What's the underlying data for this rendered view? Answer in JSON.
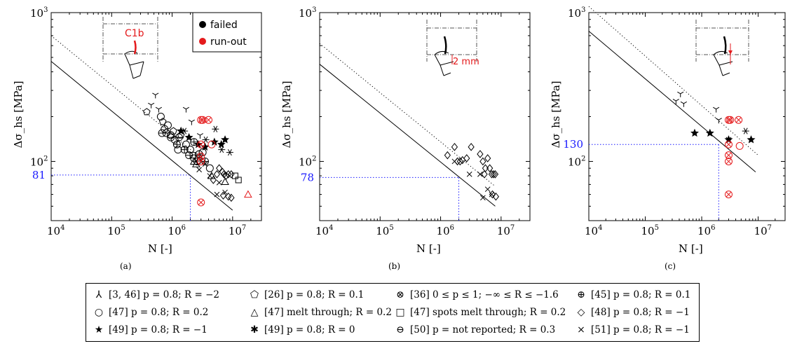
{
  "chart_data": [
    {
      "panel_label": "(a)",
      "type": "scatter",
      "scale": "log-log",
      "xlim": [
        10000,
        30000000
      ],
      "ylim": [
        40,
        1000
      ],
      "xticks": [
        "10^4",
        "10^5",
        "10^6",
        "10^7"
      ],
      "yticks": [
        "10^2",
        "10^3"
      ],
      "xlabel": "N [-]",
      "ylabel": "Δσ_hs [MPa]",
      "legend": [
        "failed",
        "run-out"
      ],
      "legend_position": "top-right",
      "inset_annotation": "C1b",
      "reference_level": {
        "label": "81",
        "value": 81,
        "N": 2000000
      },
      "lines": [
        {
          "style": "solid",
          "points": [
            [
              10000,
              470
            ],
            [
              10000000,
              47
            ]
          ]
        },
        {
          "style": "dotted",
          "points": [
            [
              10000,
              700
            ],
            [
              3500000,
              100
            ]
          ]
        }
      ],
      "points": [
        {
          "m": "Y",
          "x": 450000,
          "y": 240
        },
        {
          "m": "Y",
          "x": 530000,
          "y": 280
        },
        {
          "m": "Y",
          "x": 600000,
          "y": 225
        },
        {
          "m": "Y",
          "x": 1700000,
          "y": 225
        },
        {
          "m": "Y",
          "x": 2100000,
          "y": 185
        },
        {
          "m": "Y",
          "x": 2900000,
          "y": 150
        },
        {
          "m": "pent",
          "x": 380000,
          "y": 215
        },
        {
          "m": "pent",
          "x": 700000,
          "y": 185
        },
        {
          "m": "pent",
          "x": 1050000,
          "y": 160
        },
        {
          "m": "pent",
          "x": 1400000,
          "y": 150
        },
        {
          "m": "o",
          "x": 650000,
          "y": 200
        },
        {
          "m": "o",
          "x": 750000,
          "y": 165
        },
        {
          "m": "o",
          "x": 850000,
          "y": 175
        },
        {
          "m": "o",
          "x": 950000,
          "y": 150
        },
        {
          "m": "o",
          "x": 1100000,
          "y": 140
        },
        {
          "m": "o",
          "x": 1250000,
          "y": 120
        },
        {
          "m": "o",
          "x": 1700000,
          "y": 130
        },
        {
          "m": "o",
          "x": 2000000,
          "y": 120
        },
        {
          "m": "o",
          "x": 2300000,
          "y": 105
        },
        {
          "m": "o",
          "x": 2600000,
          "y": 100
        },
        {
          "m": "o",
          "x": 3200000,
          "y": 115
        },
        {
          "m": "o",
          "x": 4200000,
          "y": 90
        },
        {
          "m": "ominus",
          "x": 680000,
          "y": 155
        },
        {
          "m": "ominus",
          "x": 800000,
          "y": 155
        },
        {
          "m": "ominus",
          "x": 950000,
          "y": 145
        },
        {
          "m": "ominus",
          "x": 1300000,
          "y": 145
        },
        {
          "m": "ominus",
          "x": 1900000,
          "y": 110
        },
        {
          "m": "oplus",
          "x": 1200000,
          "y": 130
        },
        {
          "m": "oplus",
          "x": 1600000,
          "y": 120
        },
        {
          "m": "oplus",
          "x": 2300000,
          "y": 135
        },
        {
          "m": "oplus",
          "x": 2800000,
          "y": 112
        },
        {
          "m": "oplus",
          "x": 3500000,
          "y": 100
        },
        {
          "m": "tri",
          "x": 2300000,
          "y": 100
        },
        {
          "m": "tri",
          "x": 2500000,
          "y": 96
        },
        {
          "m": "tri",
          "x": 4500000,
          "y": 80
        },
        {
          "m": "tri",
          "x": 7500000,
          "y": 73
        },
        {
          "m": "sq",
          "x": 2200000,
          "y": 110
        },
        {
          "m": "sq",
          "x": 2700000,
          "y": 105
        },
        {
          "m": "sq",
          "x": 11000000,
          "y": 80
        },
        {
          "m": "sq",
          "x": 12500000,
          "y": 75
        },
        {
          "m": "dia",
          "x": 4800000,
          "y": 75
        },
        {
          "m": "dia",
          "x": 5500000,
          "y": 82
        },
        {
          "m": "dia",
          "x": 6000000,
          "y": 90
        },
        {
          "m": "dia",
          "x": 6800000,
          "y": 85
        },
        {
          "m": "dia",
          "x": 7200000,
          "y": 82
        },
        {
          "m": "dia",
          "x": 7800000,
          "y": 80
        },
        {
          "m": "dia",
          "x": 8500000,
          "y": 82
        },
        {
          "m": "dia",
          "x": 9500000,
          "y": 82
        },
        {
          "m": "dia",
          "x": 7000000,
          "y": 59
        },
        {
          "m": "dia",
          "x": 8500000,
          "y": 58
        },
        {
          "m": "dia",
          "x": 9500000,
          "y": 57
        },
        {
          "m": "star5",
          "x": 1400000,
          "y": 160
        },
        {
          "m": "star5",
          "x": 1900000,
          "y": 145
        },
        {
          "m": "star5",
          "x": 2700000,
          "y": 130
        },
        {
          "m": "star5",
          "x": 3500000,
          "y": 125
        },
        {
          "m": "star5",
          "x": 5000000,
          "y": 135
        },
        {
          "m": "star5",
          "x": 6500000,
          "y": 130
        },
        {
          "m": "star5",
          "x": 7500000,
          "y": 140
        },
        {
          "m": "star6",
          "x": 1600000,
          "y": 160
        },
        {
          "m": "star6",
          "x": 3600000,
          "y": 140
        },
        {
          "m": "star6",
          "x": 5200000,
          "y": 165
        },
        {
          "m": "star6",
          "x": 6600000,
          "y": 120
        },
        {
          "m": "star6",
          "x": 9000000,
          "y": 115
        },
        {
          "m": "x",
          "x": 2800000,
          "y": 88
        },
        {
          "m": "x",
          "x": 3500000,
          "y": 96
        },
        {
          "m": "x",
          "x": 4200000,
          "y": 80
        },
        {
          "m": "x",
          "x": 5500000,
          "y": 60
        },
        {
          "m": "x",
          "x": 7500000,
          "y": 62
        },
        {
          "m": "x",
          "x": 6000000,
          "y": 72
        },
        {
          "m": "otimes",
          "x": 3000000,
          "y": 190,
          "run_out": true
        },
        {
          "m": "otimes",
          "x": 3200000,
          "y": 190,
          "run_out": true
        },
        {
          "m": "otimes",
          "x": 4000000,
          "y": 190,
          "run_out": true
        },
        {
          "m": "otimes",
          "x": 3000000,
          "y": 130,
          "run_out": true
        },
        {
          "m": "otimes",
          "x": 3000000,
          "y": 108,
          "run_out": true
        },
        {
          "m": "otimes",
          "x": 3000000,
          "y": 100,
          "run_out": true
        },
        {
          "m": "otimes",
          "x": 3000000,
          "y": 53,
          "run_out": true
        },
        {
          "m": "o",
          "x": 4500000,
          "y": 130,
          "run_out": true
        },
        {
          "m": "tri",
          "x": 18000000,
          "y": 60,
          "run_out": true
        }
      ]
    },
    {
      "panel_label": "(b)",
      "type": "scatter",
      "scale": "log-log",
      "xlim": [
        10000,
        30000000
      ],
      "ylim": [
        40,
        1000
      ],
      "xticks": [
        "10^4",
        "10^5",
        "10^6",
        "10^7"
      ],
      "yticks": [
        "10^2",
        "10^3"
      ],
      "xlabel": "N [-]",
      "ylabel": "Δσ_hs [MPa]",
      "inset_annotation": "2 mm",
      "reference_level": {
        "label": "78",
        "value": 78,
        "N": 2000000
      },
      "lines": [
        {
          "style": "solid",
          "points": [
            [
              10000,
              450
            ],
            [
              8000000,
              50
            ]
          ]
        },
        {
          "style": "dotted",
          "points": [
            [
              10000,
              620
            ],
            [
              8000000,
              68
            ]
          ]
        }
      ],
      "points": [
        {
          "m": "dia",
          "x": 1300000,
          "y": 110
        },
        {
          "m": "dia",
          "x": 1700000,
          "y": 125
        },
        {
          "m": "dia",
          "x": 1900000,
          "y": 100
        },
        {
          "m": "dia",
          "x": 2100000,
          "y": 100
        },
        {
          "m": "dia",
          "x": 2300000,
          "y": 102
        },
        {
          "m": "dia",
          "x": 2700000,
          "y": 105
        },
        {
          "m": "dia",
          "x": 3200000,
          "y": 125
        },
        {
          "m": "dia",
          "x": 4500000,
          "y": 112
        },
        {
          "m": "dia",
          "x": 5000000,
          "y": 100
        },
        {
          "m": "dia",
          "x": 5500000,
          "y": 90
        },
        {
          "m": "dia",
          "x": 6000000,
          "y": 105
        },
        {
          "m": "dia",
          "x": 5300000,
          "y": 82
        },
        {
          "m": "dia",
          "x": 6500000,
          "y": 90
        },
        {
          "m": "dia",
          "x": 7000000,
          "y": 82
        },
        {
          "m": "dia",
          "x": 7500000,
          "y": 82
        },
        {
          "m": "dia",
          "x": 8000000,
          "y": 82
        },
        {
          "m": "dia",
          "x": 7200000,
          "y": 60
        },
        {
          "m": "dia",
          "x": 8200000,
          "y": 58
        },
        {
          "m": "x",
          "x": 1700000,
          "y": 100
        },
        {
          "m": "x",
          "x": 3000000,
          "y": 82
        },
        {
          "m": "x",
          "x": 4500000,
          "y": 82
        },
        {
          "m": "x",
          "x": 6000000,
          "y": 65
        },
        {
          "m": "x",
          "x": 7000000,
          "y": 60
        },
        {
          "m": "x",
          "x": 5000000,
          "y": 57
        }
      ]
    },
    {
      "panel_label": "(c)",
      "type": "scatter",
      "scale": "log-log",
      "xlim": [
        10000,
        30000000
      ],
      "ylim": [
        40,
        1000
      ],
      "xticks": [
        "10^4",
        "10^5",
        "10^6",
        "10^7"
      ],
      "yticks": [
        "10^2",
        "10^3"
      ],
      "xlabel": "N [-]",
      "ylabel": "Δσ_hs [MPa]",
      "reference_level": {
        "label": "130",
        "value": 130,
        "N": 2000000
      },
      "lines": [
        {
          "style": "solid",
          "points": [
            [
              10000,
              750
            ],
            [
              9000000,
              85
            ]
          ]
        },
        {
          "style": "dotted",
          "points": [
            [
              10000,
              1100
            ],
            [
              10000000,
              110
            ]
          ]
        }
      ],
      "points": [
        {
          "m": "Y",
          "x": 350000,
          "y": 255
        },
        {
          "m": "Y",
          "x": 420000,
          "y": 285
        },
        {
          "m": "Y",
          "x": 480000,
          "y": 245
        },
        {
          "m": "Y",
          "x": 1800000,
          "y": 225
        },
        {
          "m": "Y",
          "x": 2000000,
          "y": 190
        },
        {
          "m": "star5",
          "x": 750000,
          "y": 155
        },
        {
          "m": "star5",
          "x": 1400000,
          "y": 155
        },
        {
          "m": "star5",
          "x": 3000000,
          "y": 140
        },
        {
          "m": "star5",
          "x": 7500000,
          "y": 140
        },
        {
          "m": "star6",
          "x": 6000000,
          "y": 160
        },
        {
          "m": "x",
          "x": 3000000,
          "y": 140
        },
        {
          "m": "otimes",
          "x": 3000000,
          "y": 190,
          "run_out": true
        },
        {
          "m": "otimes",
          "x": 3200000,
          "y": 190,
          "run_out": true
        },
        {
          "m": "otimes",
          "x": 4500000,
          "y": 190,
          "run_out": true
        },
        {
          "m": "otimes",
          "x": 3000000,
          "y": 130,
          "run_out": true
        },
        {
          "m": "otimes",
          "x": 3000000,
          "y": 110,
          "run_out": true
        },
        {
          "m": "otimes",
          "x": 3000000,
          "y": 100,
          "run_out": true
        },
        {
          "m": "otimes",
          "x": 3000000,
          "y": 60,
          "run_out": true
        },
        {
          "m": "o",
          "x": 4700000,
          "y": 127,
          "run_out": true
        }
      ]
    }
  ],
  "legend": {
    "rows": [
      [
        {
          "marker": "Y",
          "text": "[3, 46] p = 0.8; R = −2"
        },
        {
          "marker": "pent",
          "text": "[26] p = 0.8; R = 0.1"
        },
        {
          "marker": "otimes",
          "text": "[36] 0 ≤ p ≤ 1; −∞ ≤ R ≤ −1.6"
        },
        {
          "marker": "oplus",
          "text": "[45] p = 0.8; R = 0.1"
        }
      ],
      [
        {
          "marker": "o",
          "text": "[47] p = 0.8; R = 0.2"
        },
        {
          "marker": "tri",
          "text": "[47] melt through; R = 0.2"
        },
        {
          "marker": "sq",
          "text": "[47] spots melt through; R = 0.2"
        },
        {
          "marker": "dia",
          "text": "[48] p = 0.8; R = −1"
        }
      ],
      [
        {
          "marker": "star5",
          "text": "[49] p = 0.8; R = −1"
        },
        {
          "marker": "star6",
          "text": "[49] p = 0.8; R = 0"
        },
        {
          "marker": "ominus",
          "text": "[50] p = not reported; R = 0.3"
        },
        {
          "marker": "x",
          "text": "[51] p = 0.8; R = −1"
        }
      ]
    ]
  },
  "colors": {
    "failed": "#000000",
    "run_out": "#e41a1c",
    "reference": "#1a1aff"
  }
}
